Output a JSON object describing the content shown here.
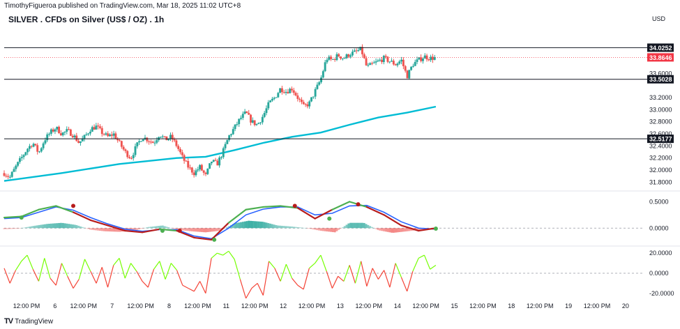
{
  "header": {
    "publisher": "TimothyFigueroa published on TradingView.com, Mar 18, 2025 11:02 UTC+8",
    "title": "SILVER . CFDs on Silver (US$ / OZ) . 1h",
    "currency": "USD"
  },
  "footer": {
    "brand": "TradingView"
  },
  "colors": {
    "up": "#26a69a",
    "down": "#ef5350",
    "sma": "#00bcd4",
    "hline": "#131722",
    "current_price": "#f23645",
    "osc_green": "#4caf50",
    "osc_red": "#b71c1c",
    "osc_blue": "#2962ff",
    "rsi_green": "#76ff03",
    "rsi_red": "#f44336"
  },
  "chart_data": [
    {
      "type": "candlestick",
      "title": "SILVER . CFDs on Silver (US$ / OZ) . 1h",
      "x_ticks": [
        "12:00 PM",
        "6",
        "12:00 PM",
        "7",
        "12:00 PM",
        "8",
        "12:00 PM",
        "11",
        "12:00 PM",
        "12",
        "12:00 PM",
        "13",
        "12:00 PM",
        "14",
        "12:00 PM",
        "15",
        "12:00 PM",
        "18",
        "12:00 PM",
        "19",
        "12:00 PM",
        "20"
      ],
      "y_ticks": [
        31.8,
        32.0,
        32.2,
        32.4,
        32.6,
        32.8,
        33.0,
        33.2,
        33.6
      ],
      "ylim": [
        31.7,
        34.33
      ],
      "close_path": [
        [
          0,
          31.95
        ],
        [
          2,
          31.88
        ],
        [
          4,
          32.05
        ],
        [
          6,
          32.2
        ],
        [
          8,
          32.35
        ],
        [
          10,
          32.45
        ],
        [
          12,
          32.28
        ],
        [
          14,
          32.5
        ],
        [
          16,
          32.62
        ],
        [
          18,
          32.7
        ],
        [
          20,
          32.6
        ],
        [
          22,
          32.65
        ],
        [
          24,
          32.58
        ],
        [
          26,
          32.45
        ],
        [
          28,
          32.55
        ],
        [
          30,
          32.68
        ],
        [
          32,
          32.72
        ],
        [
          34,
          32.62
        ],
        [
          36,
          32.55
        ],
        [
          38,
          32.6
        ],
        [
          40,
          32.45
        ],
        [
          42,
          32.3
        ],
        [
          44,
          32.2
        ],
        [
          46,
          32.4
        ],
        [
          48,
          32.55
        ],
        [
          50,
          32.5
        ],
        [
          52,
          32.45
        ],
        [
          54,
          32.6
        ],
        [
          56,
          32.5
        ],
        [
          58,
          32.55
        ],
        [
          60,
          32.4
        ],
        [
          62,
          32.2
        ],
        [
          64,
          32.05
        ],
        [
          66,
          31.95
        ],
        [
          68,
          32.05
        ],
        [
          70,
          31.9
        ],
        [
          72,
          32.15
        ],
        [
          74,
          32.1
        ],
        [
          76,
          32.3
        ],
        [
          78,
          32.55
        ],
        [
          80,
          32.7
        ],
        [
          82,
          32.85
        ],
        [
          84,
          32.95
        ],
        [
          86,
          32.8
        ],
        [
          88,
          32.75
        ],
        [
          90,
          32.9
        ],
        [
          92,
          33.1
        ],
        [
          94,
          33.2
        ],
        [
          96,
          33.35
        ],
        [
          98,
          33.3
        ],
        [
          100,
          33.35
        ],
        [
          102,
          33.2
        ],
        [
          104,
          33.05
        ],
        [
          106,
          33.1
        ],
        [
          108,
          33.3
        ],
        [
          110,
          33.5
        ],
        [
          112,
          33.85
        ],
        [
          114,
          33.82
        ],
        [
          116,
          33.9
        ],
        [
          118,
          33.85
        ],
        [
          120,
          33.92
        ],
        [
          122,
          33.95
        ],
        [
          124,
          34.0
        ],
        [
          126,
          33.7
        ],
        [
          128,
          33.75
        ],
        [
          130,
          33.8
        ],
        [
          132,
          33.85
        ],
        [
          134,
          33.8
        ],
        [
          136,
          33.75
        ],
        [
          138,
          33.82
        ],
        [
          140,
          33.55
        ],
        [
          142,
          33.75
        ],
        [
          144,
          33.82
        ],
        [
          146,
          33.88
        ],
        [
          148,
          33.85
        ],
        [
          150,
          33.86
        ]
      ],
      "series": [
        {
          "name": "",
          "type": "line",
          "x": [
            0,
            20,
            40,
            60,
            70,
            80,
            90,
            100,
            110,
            120,
            130,
            140,
            150
          ],
          "values": [
            31.82,
            31.95,
            32.1,
            32.2,
            32.22,
            32.33,
            32.45,
            32.55,
            32.62,
            32.75,
            32.87,
            32.95,
            33.05
          ]
        }
      ],
      "horizontal_lines": [
        {
          "label": "34.0252",
          "value": 34.0252
        },
        {
          "label": "33.5028",
          "value": 33.5028
        },
        {
          "label": "32.5177",
          "value": 32.5177
        }
      ],
      "current_price": {
        "label": "33.8646",
        "value": 33.8646
      }
    },
    {
      "type": "line",
      "y_ticks": [
        "0.5000",
        "0.0000"
      ],
      "ylim": [
        -0.3,
        0.65
      ],
      "series": [
        {
          "name": "",
          "x": [
            0,
            6,
            12,
            18,
            24,
            30,
            36,
            42,
            48,
            54,
            60,
            66,
            72,
            78,
            84,
            90,
            96,
            102,
            108,
            114,
            120,
            126,
            132,
            138,
            144,
            150
          ],
          "values": [
            0.2,
            0.22,
            0.35,
            0.42,
            0.3,
            0.15,
            0.05,
            -0.05,
            -0.08,
            -0.02,
            -0.05,
            -0.18,
            -0.22,
            0.1,
            0.35,
            0.4,
            0.42,
            0.38,
            0.18,
            0.35,
            0.5,
            0.4,
            0.25,
            0.05,
            -0.05,
            0.0
          ]
        },
        {
          "name": "",
          "x": [
            0,
            6,
            12,
            18,
            24,
            30,
            36,
            42,
            48,
            54,
            60,
            66,
            72,
            78,
            84,
            90,
            96,
            102,
            108,
            114,
            120,
            126,
            132,
            138,
            144,
            150
          ],
          "values": [
            0.18,
            0.2,
            0.3,
            0.4,
            0.34,
            0.2,
            0.08,
            -0.02,
            -0.06,
            -0.03,
            -0.03,
            -0.15,
            -0.2,
            0.0,
            0.25,
            0.36,
            0.4,
            0.4,
            0.25,
            0.28,
            0.42,
            0.43,
            0.3,
            0.12,
            0.0,
            -0.02
          ]
        }
      ],
      "histogram_x": [
        0,
        5,
        10,
        15,
        20,
        25,
        30,
        35,
        40,
        45,
        50,
        55,
        60,
        65,
        70,
        75,
        80,
        85,
        90,
        95,
        100,
        105,
        110,
        115,
        120,
        125,
        130,
        135,
        140,
        145,
        150
      ],
      "histogram_values": [
        -0.02,
        -0.01,
        0.04,
        0.08,
        0.1,
        0.06,
        -0.03,
        -0.06,
        -0.07,
        -0.05,
        0.02,
        0.05,
        -0.03,
        -0.06,
        -0.08,
        -0.05,
        0.09,
        0.14,
        0.12,
        0.05,
        0.03,
        0.0,
        -0.05,
        -0.08,
        0.1,
        0.1,
        -0.04,
        -0.09,
        -0.06,
        -0.03,
        -0.01
      ],
      "markers": [
        {
          "x": 6,
          "value": 0.2,
          "kind": "up"
        },
        {
          "x": 24,
          "value": 0.42,
          "kind": "down"
        },
        {
          "x": 55,
          "value": -0.05,
          "kind": "up"
        },
        {
          "x": 61,
          "value": -0.05,
          "kind": "down"
        },
        {
          "x": 73,
          "value": -0.22,
          "kind": "up"
        },
        {
          "x": 101,
          "value": 0.42,
          "kind": "down"
        },
        {
          "x": 113,
          "value": 0.18,
          "kind": "up"
        },
        {
          "x": 123,
          "value": 0.45,
          "kind": "down"
        },
        {
          "x": 150,
          "value": -0.01,
          "kind": "up"
        }
      ]
    },
    {
      "type": "line",
      "y_ticks": [
        "20.0000",
        "0.0000",
        "-20.0000"
      ],
      "ylim": [
        -25,
        25
      ],
      "series": [
        {
          "name": "",
          "x": [
            0,
            2,
            4,
            6,
            8,
            10,
            12,
            14,
            16,
            18,
            20,
            22,
            24,
            26,
            28,
            30,
            32,
            34,
            36,
            38,
            40,
            42,
            44,
            46,
            48,
            50,
            52,
            54,
            56,
            58,
            60,
            62,
            64,
            66,
            68,
            70,
            72,
            74,
            76,
            78,
            80,
            82,
            84,
            86,
            88,
            90,
            92,
            94,
            96,
            98,
            100,
            102,
            104,
            106,
            108,
            110,
            112,
            114,
            116,
            118,
            120,
            122,
            124,
            126,
            128,
            130,
            132,
            134,
            136,
            138,
            140,
            142,
            144,
            146,
            148,
            150
          ],
          "values": [
            5,
            -10,
            3,
            12,
            18,
            4,
            -8,
            15,
            -5,
            -12,
            10,
            -3,
            -15,
            -6,
            14,
            2,
            -10,
            6,
            -14,
            8,
            15,
            -5,
            10,
            2,
            -8,
            -14,
            4,
            12,
            -6,
            10,
            3,
            -12,
            -15,
            -18,
            -8,
            -20,
            15,
            20,
            18,
            22,
            14,
            -6,
            -25,
            -15,
            -10,
            -22,
            12,
            5,
            -8,
            9,
            -5,
            -12,
            -16,
            5,
            10,
            18,
            2,
            -15,
            -3,
            -8,
            8,
            -10,
            12,
            -13,
            5,
            -6,
            3,
            -14,
            10,
            -4,
            -18,
            2,
            15,
            18,
            4,
            8
          ]
        }
      ]
    }
  ]
}
